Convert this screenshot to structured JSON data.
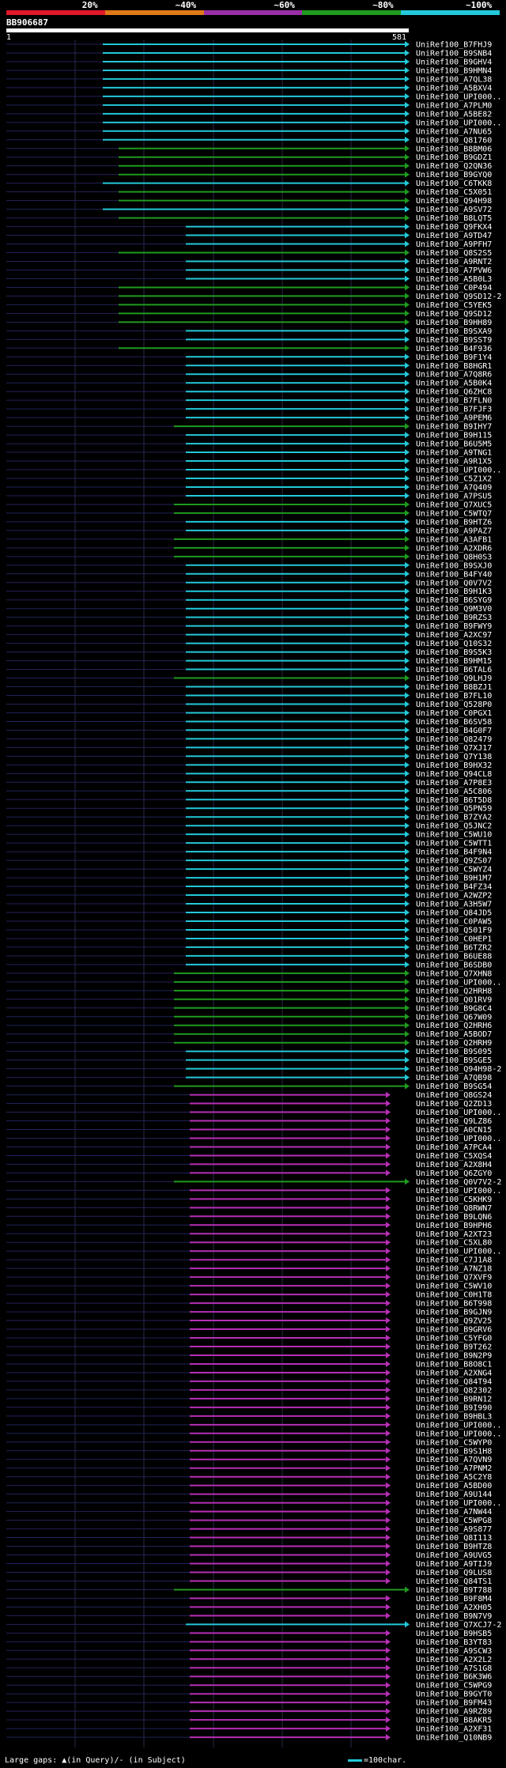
{
  "coverage_legend": [
    {
      "label": "20%",
      "color": "#e0182b"
    },
    {
      "label": "~40%",
      "color": "#e07a18"
    },
    {
      "label": "~60%",
      "color": "#9b2fa8"
    },
    {
      "label": "~80%",
      "color": "#1f9b1f"
    },
    {
      "label": "~100%",
      "color": "#23c9d9"
    }
  ],
  "query": {
    "name": "BB906687",
    "start": "1",
    "end": "581"
  },
  "footer": {
    "gaps_text": "Large gaps: ▲(in Query)/- (in Subject)",
    "scale_text": "=100char."
  },
  "colors": {
    "cyan": "#23c9d9",
    "green": "#1f9b1f",
    "magenta": "#b62fb6"
  },
  "hits": [
    {
      "label": "UniRef100_B7FHJ9",
      "color": "cyan"
    },
    {
      "label": "UniRef100_B9SNB4",
      "color": "cyan"
    },
    {
      "label": "UniRef100_B9GHV4",
      "color": "cyan"
    },
    {
      "label": "UniRef100_B9HMN4",
      "color": "cyan"
    },
    {
      "label": "UniRef100_A7QL38",
      "color": "cyan"
    },
    {
      "label": "UniRef100_A5BXV4",
      "color": "cyan"
    },
    {
      "label": "UniRef100_UPI000..",
      "color": "cyan"
    },
    {
      "label": "UniRef100_A7PLM0",
      "color": "cyan"
    },
    {
      "label": "UniRef100_A5BE82",
      "color": "cyan"
    },
    {
      "label": "UniRef100_UPI000..",
      "color": "cyan"
    },
    {
      "label": "UniRef100_A7NU65",
      "color": "cyan"
    },
    {
      "label": "UniRef100_Q81760",
      "color": "cyan"
    },
    {
      "label": "UniRef100_B8BM06",
      "color": "green"
    },
    {
      "label": "UniRef100_B9GDZ1",
      "color": "green"
    },
    {
      "label": "UniRef100_Q2QN36",
      "color": "green"
    },
    {
      "label": "UniRef100_B9GYQ0",
      "color": "green"
    },
    {
      "label": "UniRef100_C6TKK8",
      "color": "cyan"
    },
    {
      "label": "UniRef100_C5X051",
      "color": "green"
    },
    {
      "label": "UniRef100_Q94H98",
      "color": "green"
    },
    {
      "label": "UniRef100_A9SV72",
      "color": "cyan"
    },
    {
      "label": "UniRef100_B8LQT5",
      "color": "green"
    },
    {
      "label": "UniRef100_Q9FKX4",
      "color": "cyan"
    },
    {
      "label": "UniRef100_A9TD47",
      "color": "cyan"
    },
    {
      "label": "UniRef100_A9PFH7",
      "color": "cyan"
    },
    {
      "label": "UniRef100_Q8S2S5",
      "color": "green"
    },
    {
      "label": "UniRef100_A9RNT2",
      "color": "cyan"
    },
    {
      "label": "UniRef100_A7PVW6",
      "color": "cyan"
    },
    {
      "label": "UniRef100_A5B0L3",
      "color": "cyan"
    },
    {
      "label": "UniRef100_C0P494",
      "color": "green"
    },
    {
      "label": "UniRef100_Q9SD12-2",
      "color": "green"
    },
    {
      "label": "UniRef100_C5YEK5",
      "color": "green"
    },
    {
      "label": "UniRef100_Q9SD12",
      "color": "green"
    },
    {
      "label": "UniRef100_B9HH89",
      "color": "green"
    },
    {
      "label": "UniRef100_B9SXA9",
      "color": "cyan"
    },
    {
      "label": "UniRef100_B9SST9",
      "color": "cyan"
    },
    {
      "label": "UniRef100_B4F936",
      "color": "green"
    },
    {
      "label": "UniRef100_B9F1Y4",
      "color": "cyan"
    },
    {
      "label": "UniRef100_B8HGR1",
      "color": "cyan"
    },
    {
      "label": "UniRef100_A7Q8R6",
      "color": "cyan"
    },
    {
      "label": "UniRef100_A5B0K4",
      "color": "cyan"
    },
    {
      "label": "UniRef100_Q6ZHC8",
      "color": "cyan"
    },
    {
      "label": "UniRef100_B7FLN0",
      "color": "cyan"
    },
    {
      "label": "UniRef100_B7FJF3",
      "color": "cyan"
    },
    {
      "label": "UniRef100_A9PEM6",
      "color": "cyan"
    },
    {
      "label": "UniRef100_B9IHY7",
      "color": "green"
    },
    {
      "label": "UniRef100_B9H115",
      "color": "cyan"
    },
    {
      "label": "UniRef100_B6U5M5",
      "color": "cyan"
    },
    {
      "label": "UniRef100_A9TNG1",
      "color": "cyan"
    },
    {
      "label": "UniRef100_A9R1X5",
      "color": "cyan"
    },
    {
      "label": "UniRef100_UPI000..",
      "color": "cyan"
    },
    {
      "label": "UniRef100_C5Z1X2",
      "color": "cyan"
    },
    {
      "label": "UniRef100_A7Q409",
      "color": "cyan"
    },
    {
      "label": "UniRef100_A7PSU5",
      "color": "cyan"
    },
    {
      "label": "UniRef100_Q7XUC5",
      "color": "green"
    },
    {
      "label": "UniRef100_C5WTQ7",
      "color": "green"
    },
    {
      "label": "UniRef100_B9HTZ6",
      "color": "cyan"
    },
    {
      "label": "UniRef100_A9PAZ7",
      "color": "cyan"
    },
    {
      "label": "UniRef100_A3AFB1",
      "color": "green"
    },
    {
      "label": "UniRef100_A2XDR6",
      "color": "green"
    },
    {
      "label": "UniRef100_Q8H0S3",
      "color": "green"
    },
    {
      "label": "UniRef100_B9SXJ0",
      "color": "cyan"
    },
    {
      "label": "UniRef100_B4FY40",
      "color": "cyan"
    },
    {
      "label": "UniRef100_Q0V7V2",
      "color": "cyan"
    },
    {
      "label": "UniRef100_B9H1K3",
      "color": "cyan"
    },
    {
      "label": "UniRef100_B6SYG9",
      "color": "cyan"
    },
    {
      "label": "UniRef100_Q9M3V0",
      "color": "cyan"
    },
    {
      "label": "UniRef100_B9RZS3",
      "color": "cyan"
    },
    {
      "label": "UniRef100_B9FWY9",
      "color": "cyan"
    },
    {
      "label": "UniRef100_A2XC97",
      "color": "cyan"
    },
    {
      "label": "UniRef100_Q10S32",
      "color": "cyan"
    },
    {
      "label": "UniRef100_B9S5K3",
      "color": "cyan"
    },
    {
      "label": "UniRef100_B9HM15",
      "color": "cyan"
    },
    {
      "label": "UniRef100_B6TAL6",
      "color": "cyan"
    },
    {
      "label": "UniRef100_Q9LHJ9",
      "color": "green"
    },
    {
      "label": "UniRef100_B8BZJ1",
      "color": "cyan"
    },
    {
      "label": "UniRef100_B7FL10",
      "color": "cyan"
    },
    {
      "label": "UniRef100_Q528P0",
      "color": "cyan"
    },
    {
      "label": "UniRef100_C0PGX1",
      "color": "cyan"
    },
    {
      "label": "UniRef100_B6SV58",
      "color": "cyan"
    },
    {
      "label": "UniRef100_B4G0F7",
      "color": "cyan"
    },
    {
      "label": "UniRef100_Q82479",
      "color": "cyan"
    },
    {
      "label": "UniRef100_Q7XJ17",
      "color": "cyan"
    },
    {
      "label": "UniRef100_Q7Y138",
      "color": "cyan"
    },
    {
      "label": "UniRef100_B9HX32",
      "color": "cyan"
    },
    {
      "label": "UniRef100_Q94CL8",
      "color": "cyan"
    },
    {
      "label": "UniRef100_A7P8E3",
      "color": "cyan"
    },
    {
      "label": "UniRef100_A5C806",
      "color": "cyan"
    },
    {
      "label": "UniRef100_B6T5D8",
      "color": "cyan"
    },
    {
      "label": "UniRef100_Q5PN59",
      "color": "cyan"
    },
    {
      "label": "UniRef100_B7ZYA2",
      "color": "cyan"
    },
    {
      "label": "UniRef100_Q5JNC2",
      "color": "cyan"
    },
    {
      "label": "UniRef100_C5WU10",
      "color": "cyan"
    },
    {
      "label": "UniRef100_C5WTT1",
      "color": "cyan"
    },
    {
      "label": "UniRef100_B4F9N4",
      "color": "cyan"
    },
    {
      "label": "UniRef100_Q9ZS07",
      "color": "cyan"
    },
    {
      "label": "UniRef100_C5WYZ4",
      "color": "cyan"
    },
    {
      "label": "UniRef100_B9H1M7",
      "color": "cyan"
    },
    {
      "label": "UniRef100_B4FZ34",
      "color": "cyan"
    },
    {
      "label": "UniRef100_A2WZP2",
      "color": "cyan"
    },
    {
      "label": "UniRef100_A3H5W7",
      "color": "cyan"
    },
    {
      "label": "UniRef100_Q84JD5",
      "color": "cyan"
    },
    {
      "label": "UniRef100_C0PAW5",
      "color": "cyan"
    },
    {
      "label": "UniRef100_Q501F9",
      "color": "cyan"
    },
    {
      "label": "UniRef100_C0HEP1",
      "color": "cyan"
    },
    {
      "label": "UniRef100_B6TZR2",
      "color": "cyan"
    },
    {
      "label": "UniRef100_B6UE88",
      "color": "cyan"
    },
    {
      "label": "UniRef100_B6SDB0",
      "color": "cyan"
    },
    {
      "label": "UniRef100_Q7XHN8",
      "color": "green"
    },
    {
      "label": "UniRef100_UPI000..",
      "color": "green"
    },
    {
      "label": "UniRef100_Q2HRH8",
      "color": "green"
    },
    {
      "label": "UniRef100_Q01RV9",
      "color": "green"
    },
    {
      "label": "UniRef100_B9G8C4",
      "color": "green"
    },
    {
      "label": "UniRef100_Q67W09",
      "color": "green"
    },
    {
      "label": "UniRef100_Q2HRH6",
      "color": "green"
    },
    {
      "label": "UniRef100_A5BOD7",
      "color": "green"
    },
    {
      "label": "UniRef100_Q2HRH9",
      "color": "green"
    },
    {
      "label": "UniRef100_B9S095",
      "color": "cyan"
    },
    {
      "label": "UniRef100_B9SGE5",
      "color": "cyan"
    },
    {
      "label": "UniRef100_Q94H98-2",
      "color": "cyan"
    },
    {
      "label": "UniRef100_A7QB98",
      "color": "cyan"
    },
    {
      "label": "UniRef100_B9SG54",
      "color": "green"
    },
    {
      "label": "UniRef100_Q8GS24",
      "color": "magenta"
    },
    {
      "label": "UniRef100_Q2ZD13",
      "color": "magenta"
    },
    {
      "label": "UniRef100_UPI000..",
      "color": "magenta"
    },
    {
      "label": "UniRef100_Q9LZ86",
      "color": "magenta"
    },
    {
      "label": "UniRef100_A0CN15",
      "color": "magenta"
    },
    {
      "label": "UniRef100_UPI000..",
      "color": "magenta"
    },
    {
      "label": "UniRef100_A7PCA4",
      "color": "magenta"
    },
    {
      "label": "UniRef100_C5XQS4",
      "color": "magenta"
    },
    {
      "label": "UniRef100_A2X8H4",
      "color": "magenta"
    },
    {
      "label": "UniRef100_Q6ZGY0",
      "color": "magenta"
    },
    {
      "label": "UniRef100_Q0V7V2-2",
      "color": "green"
    },
    {
      "label": "UniRef100_UPI000..",
      "color": "magenta"
    },
    {
      "label": "UniRef100_C5KHK9",
      "color": "magenta"
    },
    {
      "label": "UniRef100_Q8RWN7",
      "color": "magenta"
    },
    {
      "label": "UniRef100_B9LQN6",
      "color": "magenta"
    },
    {
      "label": "UniRef100_B9HPH6",
      "color": "magenta"
    },
    {
      "label": "UniRef100_A2XT23",
      "color": "magenta"
    },
    {
      "label": "UniRef100_C5XL80",
      "color": "magenta"
    },
    {
      "label": "UniRef100_UPI000..",
      "color": "magenta"
    },
    {
      "label": "UniRef100_C7J1A8",
      "color": "magenta"
    },
    {
      "label": "UniRef100_A7NZ18",
      "color": "magenta"
    },
    {
      "label": "UniRef100_Q7XVF9",
      "color": "magenta"
    },
    {
      "label": "UniRef100_C5WV10",
      "color": "magenta"
    },
    {
      "label": "UniRef100_C0H1T8",
      "color": "magenta"
    },
    {
      "label": "UniRef100_B6T998",
      "color": "magenta"
    },
    {
      "label": "UniRef100_B9GJN9",
      "color": "magenta"
    },
    {
      "label": "UniRef100_Q9ZV25",
      "color": "magenta"
    },
    {
      "label": "UniRef100_B9GRV6",
      "color": "magenta"
    },
    {
      "label": "UniRef100_C5YFG0",
      "color": "magenta"
    },
    {
      "label": "UniRef100_B9T262",
      "color": "magenta"
    },
    {
      "label": "UniRef100_B9N2P9",
      "color": "magenta"
    },
    {
      "label": "UniRef100_B8O8C1",
      "color": "magenta"
    },
    {
      "label": "UniRef100_A2XNG4",
      "color": "magenta"
    },
    {
      "label": "UniRef100_Q84T94",
      "color": "magenta"
    },
    {
      "label": "UniRef100_Q82302",
      "color": "magenta"
    },
    {
      "label": "UniRef100_B9RN12",
      "color": "magenta"
    },
    {
      "label": "UniRef100_B9I990",
      "color": "magenta"
    },
    {
      "label": "UniRef100_B9HBL3",
      "color": "magenta"
    },
    {
      "label": "UniRef100_UPI000..",
      "color": "magenta"
    },
    {
      "label": "UniRef100_UPI000..",
      "color": "magenta"
    },
    {
      "label": "UniRef100_C5WYP0",
      "color": "magenta"
    },
    {
      "label": "UniRef100_B9S1H8",
      "color": "magenta"
    },
    {
      "label": "UniRef100_A7QVN9",
      "color": "magenta"
    },
    {
      "label": "UniRef100_A7PNM2",
      "color": "magenta"
    },
    {
      "label": "UniRef100_A5C2Y8",
      "color": "magenta"
    },
    {
      "label": "UniRef100_A5BD00",
      "color": "magenta"
    },
    {
      "label": "UniRef100_A9U144",
      "color": "magenta"
    },
    {
      "label": "UniRef100_UPI000..",
      "color": "magenta"
    },
    {
      "label": "UniRef100_A7NW44",
      "color": "magenta"
    },
    {
      "label": "UniRef100_C5WPG8",
      "color": "magenta"
    },
    {
      "label": "UniRef100_A9S877",
      "color": "magenta"
    },
    {
      "label": "UniRef100_Q8I113",
      "color": "magenta"
    },
    {
      "label": "UniRef100_B9HTZ8",
      "color": "magenta"
    },
    {
      "label": "UniRef100_A9UVG5",
      "color": "magenta"
    },
    {
      "label": "UniRef100_A9TIJ9",
      "color": "magenta"
    },
    {
      "label": "UniRef100_Q9LUS8",
      "color": "magenta"
    },
    {
      "label": "UniRef100_Q84TS1",
      "color": "magenta"
    },
    {
      "label": "UniRef100_B9T788",
      "color": "green"
    },
    {
      "label": "UniRef100_B9F8M4",
      "color": "magenta"
    },
    {
      "label": "UniRef100_A2XH05",
      "color": "magenta"
    },
    {
      "label": "UniRef100_B9N7V9",
      "color": "magenta"
    },
    {
      "label": "UniRef100_Q7XCJ7-2",
      "color": "cyan"
    },
    {
      "label": "UniRef100_B9HSB5",
      "color": "magenta"
    },
    {
      "label": "UniRef100_B3YT83",
      "color": "magenta"
    },
    {
      "label": "UniRef100_A9SCW3",
      "color": "magenta"
    },
    {
      "label": "UniRef100_A2X2L2",
      "color": "magenta"
    },
    {
      "label": "UniRef100_A7S1G8",
      "color": "magenta"
    },
    {
      "label": "UniRef100_B6K3W6",
      "color": "magenta"
    },
    {
      "label": "UniRef100_C5WPG9",
      "color": "magenta"
    },
    {
      "label": "UniRef100_B9GYT0",
      "color": "magenta"
    },
    {
      "label": "UniRef100_B9FM43",
      "color": "magenta"
    },
    {
      "label": "UniRef100_A9RZ89",
      "color": "magenta"
    },
    {
      "label": "UniRef100_B8AKR5",
      "color": "magenta"
    },
    {
      "label": "UniRef100_A2XF31",
      "color": "magenta"
    },
    {
      "label": "UniRef100_Q10NB9",
      "color": "magenta"
    }
  ]
}
